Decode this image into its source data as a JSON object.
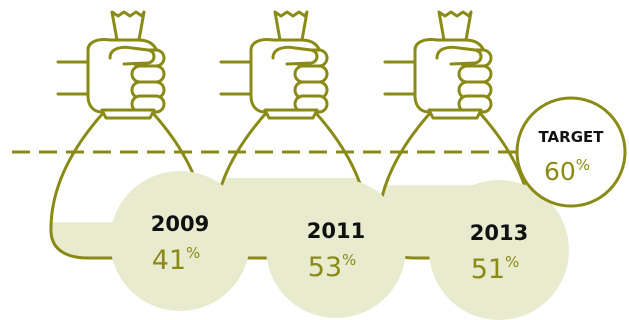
{
  "chart_data": {
    "type": "bar",
    "categories": [
      "2009",
      "2011",
      "2013"
    ],
    "values": [
      41,
      53,
      51
    ],
    "value_suffix": "%",
    "target": {
      "label": "TARGET",
      "value": 60
    },
    "ylim": [
      0,
      100
    ],
    "colors": {
      "outline": "#8a8a16",
      "fill": "#e9ebcf",
      "text": "#111111",
      "value": "#8a8a16"
    },
    "icons": [
      "money-bag-icon",
      "fist-icon"
    ]
  }
}
